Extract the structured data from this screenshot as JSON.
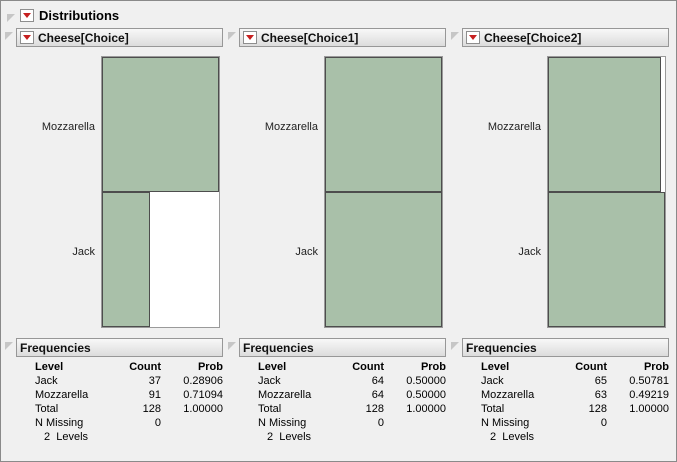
{
  "window": {
    "title": "Distributions"
  },
  "colors": {
    "bar_fill": "#a9c0a9",
    "bar_border": "#4d4d4d",
    "menu_red": "#c62020",
    "background": "#f0f0f0"
  },
  "panels": [
    {
      "title": "Cheese[Choice]",
      "chart": {
        "type": "histogram",
        "labels": {
          "top": "Mozzarella",
          "bottom": "Jack"
        },
        "bars": {
          "top": {
            "name": "Mozzarella",
            "count": 91,
            "width": "100%"
          },
          "bottom": {
            "name": "Jack",
            "count": 37,
            "width": "40.7%"
          }
        }
      },
      "frequencies": {
        "title": "Frequencies",
        "columns": {
          "level": "Level",
          "count": "Count",
          "prob": "Prob"
        },
        "rows": [
          {
            "level": "Jack",
            "count": "37",
            "prob": "0.28906"
          },
          {
            "level": "Mozzarella",
            "count": "91",
            "prob": "0.71094"
          },
          {
            "level": "Total",
            "count": "128",
            "prob": "1.00000"
          },
          {
            "level": "N Missing",
            "count": "0",
            "prob": ""
          }
        ],
        "footer": "2  Levels"
      }
    },
    {
      "title": "Cheese[Choice1]",
      "chart": {
        "type": "histogram",
        "labels": {
          "top": "Mozzarella",
          "bottom": "Jack"
        },
        "bars": {
          "top": {
            "name": "Mozzarella",
            "count": 64,
            "width": "100%"
          },
          "bottom": {
            "name": "Jack",
            "count": 64,
            "width": "100%"
          }
        }
      },
      "frequencies": {
        "title": "Frequencies",
        "columns": {
          "level": "Level",
          "count": "Count",
          "prob": "Prob"
        },
        "rows": [
          {
            "level": "Jack",
            "count": "64",
            "prob": "0.50000"
          },
          {
            "level": "Mozzarella",
            "count": "64",
            "prob": "0.50000"
          },
          {
            "level": "Total",
            "count": "128",
            "prob": "1.00000"
          },
          {
            "level": "N Missing",
            "count": "0",
            "prob": ""
          }
        ],
        "footer": "2  Levels"
      }
    },
    {
      "title": "Cheese[Choice2]",
      "chart": {
        "type": "histogram",
        "labels": {
          "top": "Mozzarella",
          "bottom": "Jack"
        },
        "bars": {
          "top": {
            "name": "Mozzarella",
            "count": 63,
            "width": "96.9%"
          },
          "bottom": {
            "name": "Jack",
            "count": 65,
            "width": "100%"
          }
        }
      },
      "frequencies": {
        "title": "Frequencies",
        "columns": {
          "level": "Level",
          "count": "Count",
          "prob": "Prob"
        },
        "rows": [
          {
            "level": "Jack",
            "count": "65",
            "prob": "0.50781"
          },
          {
            "level": "Mozzarella",
            "count": "63",
            "prob": "0.49219"
          },
          {
            "level": "Total",
            "count": "128",
            "prob": "1.00000"
          },
          {
            "level": "N Missing",
            "count": "0",
            "prob": ""
          }
        ],
        "footer": "2  Levels"
      }
    }
  ]
}
